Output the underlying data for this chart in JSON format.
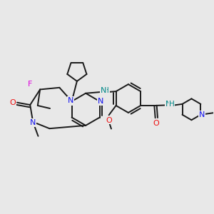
{
  "bg_color": "#e8e8e8",
  "bond_color": "#1a1a1a",
  "bond_width": 1.4,
  "atom_colors": {
    "N": "#1010ee",
    "O": "#ee1010",
    "F": "#dd00dd",
    "NH": "#008888",
    "C": "#1a1a1a"
  }
}
